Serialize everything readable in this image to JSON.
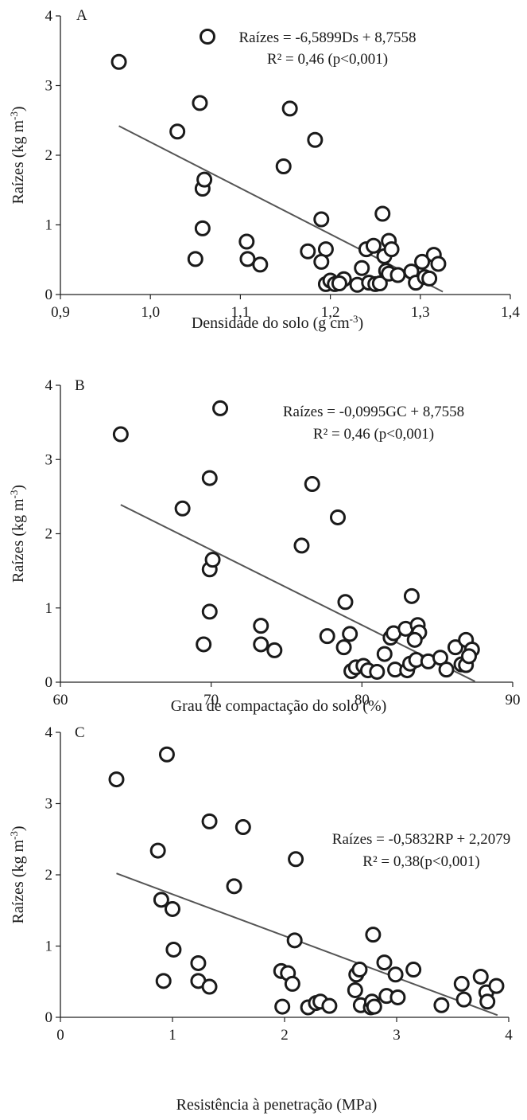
{
  "chart_data": [
    {
      "type": "scatter",
      "panel_label": "A",
      "xlabel": "Densidade do solo (g cm⁻³)",
      "ylabel": "Raízes (kg m⁻³)",
      "xlim": [
        0.9,
        1.4
      ],
      "ylim": [
        0,
        4
      ],
      "x_ticks": [
        "0,9",
        "1,0",
        "1,1",
        "1,2",
        "1,3",
        "1,4"
      ],
      "y_ticks": [
        "0",
        "1",
        "2",
        "3",
        "4"
      ],
      "equation": "Raízes = -6,5899Ds + 8,7558",
      "r2": "R² = 0,46 (p<0,001)",
      "trendline": {
        "x": [
          0.965,
          1.325
        ],
        "y": [
          2.42,
          0.04
        ]
      },
      "legend_marker": true,
      "grid": false,
      "series": [
        {
          "x": [
            0.965,
            1.03,
            1.055,
            1.058,
            1.058,
            1.06,
            1.05,
            1.107,
            1.108,
            1.122,
            1.155,
            1.148,
            1.183,
            1.19,
            1.195,
            1.19,
            1.195,
            1.175,
            1.2,
            1.205,
            1.215,
            1.21,
            1.23,
            1.235,
            1.24,
            1.243,
            1.248,
            1.25,
            1.255,
            1.258,
            1.262,
            1.265,
            1.26,
            1.265,
            1.268,
            1.275,
            1.29,
            1.295,
            1.302,
            1.305,
            1.31,
            1.315,
            1.32
          ],
          "y": [
            3.34,
            2.34,
            2.75,
            1.52,
            0.95,
            1.65,
            0.51,
            0.76,
            0.51,
            0.43,
            2.67,
            1.84,
            2.22,
            1.08,
            0.65,
            0.47,
            0.15,
            0.62,
            0.2,
            0.15,
            0.22,
            0.16,
            0.14,
            0.38,
            0.65,
            0.17,
            0.7,
            0.15,
            0.16,
            1.16,
            0.34,
            0.3,
            0.55,
            0.77,
            0.65,
            0.28,
            0.33,
            0.17,
            0.47,
            0.25,
            0.23,
            0.57,
            0.44
          ]
        }
      ]
    },
    {
      "type": "scatter",
      "panel_label": "B",
      "xlabel": "Grau de compactação do solo (%)",
      "ylabel": "Raízes (kg m⁻³)",
      "xlim": [
        60,
        90
      ],
      "ylim": [
        0,
        4
      ],
      "x_ticks": [
        "60",
        "70",
        "80",
        "90"
      ],
      "y_ticks": [
        "0",
        "1",
        "2",
        "3",
        "4"
      ],
      "equation": "Raízes = -0,0995GC + 8,7558",
      "r2": "R² = 0,46 (p<0,001)",
      "trendline": {
        "x": [
          64,
          87.5
        ],
        "y": [
          2.39,
          0.01
        ]
      },
      "legend_marker": false,
      "grid": false,
      "series": [
        {
          "x": [
            64.0,
            68.1,
            69.9,
            70.6,
            69.9,
            70.1,
            69.9,
            69.5,
            73.3,
            73.3,
            74.2,
            76.7,
            76.0,
            78.4,
            77.7,
            78.9,
            79.2,
            78.8,
            79.3,
            79.6,
            80.1,
            80.4,
            81.0,
            81.5,
            81.9,
            82.1,
            82.2,
            82.9,
            83.0,
            83.2,
            83.3,
            83.6,
            83.7,
            83.8,
            83.5,
            84.4,
            85.2,
            85.6,
            86.2,
            86.6,
            86.9,
            86.9,
            87.3,
            87.1
          ],
          "y": [
            3.34,
            2.34,
            2.75,
            3.69,
            1.52,
            1.65,
            0.95,
            0.51,
            0.76,
            0.51,
            0.43,
            2.67,
            1.84,
            2.22,
            0.62,
            1.08,
            0.65,
            0.47,
            0.15,
            0.2,
            0.22,
            0.16,
            0.14,
            0.38,
            0.6,
            0.66,
            0.17,
            0.72,
            0.16,
            0.25,
            1.16,
            0.3,
            0.77,
            0.67,
            0.57,
            0.28,
            0.33,
            0.17,
            0.47,
            0.24,
            0.23,
            0.57,
            0.44,
            0.35
          ]
        }
      ]
    },
    {
      "type": "scatter",
      "panel_label": "C",
      "xlabel": "Resistência à penetração (MPa)",
      "ylabel": "Raízes (kg m⁻³)",
      "xlim": [
        0,
        4
      ],
      "ylim": [
        0,
        4
      ],
      "x_ticks": [
        "0",
        "1",
        "2",
        "3",
        "4"
      ],
      "y_ticks": [
        "0",
        "1",
        "2",
        "3",
        "4"
      ],
      "equation": "Raízes = -0,5832RP + 2,2079",
      "r2": "R² = 0,38(p<0,001)",
      "trendline": {
        "x": [
          0.5,
          3.9
        ],
        "y": [
          2.02,
          0.03
        ]
      },
      "legend_marker": false,
      "grid": false,
      "series": [
        {
          "x": [
            0.5,
            0.95,
            0.87,
            1.33,
            1.63,
            1.55,
            2.1,
            0.9,
            1.0,
            1.01,
            0.92,
            1.23,
            1.23,
            1.33,
            2.09,
            1.97,
            2.03,
            2.07,
            1.98,
            2.21,
            2.28,
            2.32,
            2.4,
            2.63,
            2.64,
            2.67,
            2.68,
            2.77,
            2.79,
            2.78,
            2.8,
            2.89,
            2.91,
            2.99,
            3.01,
            3.15,
            3.4,
            3.58,
            3.6,
            3.75,
            3.8,
            3.81,
            3.89
          ],
          "y": [
            3.34,
            3.69,
            2.34,
            2.75,
            2.67,
            1.84,
            2.22,
            1.65,
            1.52,
            0.95,
            0.51,
            0.76,
            0.51,
            0.43,
            1.08,
            0.65,
            0.62,
            0.47,
            0.15,
            0.14,
            0.2,
            0.22,
            0.16,
            0.38,
            0.6,
            0.67,
            0.17,
            0.14,
            1.16,
            0.22,
            0.15,
            0.77,
            0.3,
            0.6,
            0.28,
            0.67,
            0.17,
            0.47,
            0.25,
            0.57,
            0.35,
            0.22,
            0.44
          ]
        }
      ]
    }
  ]
}
